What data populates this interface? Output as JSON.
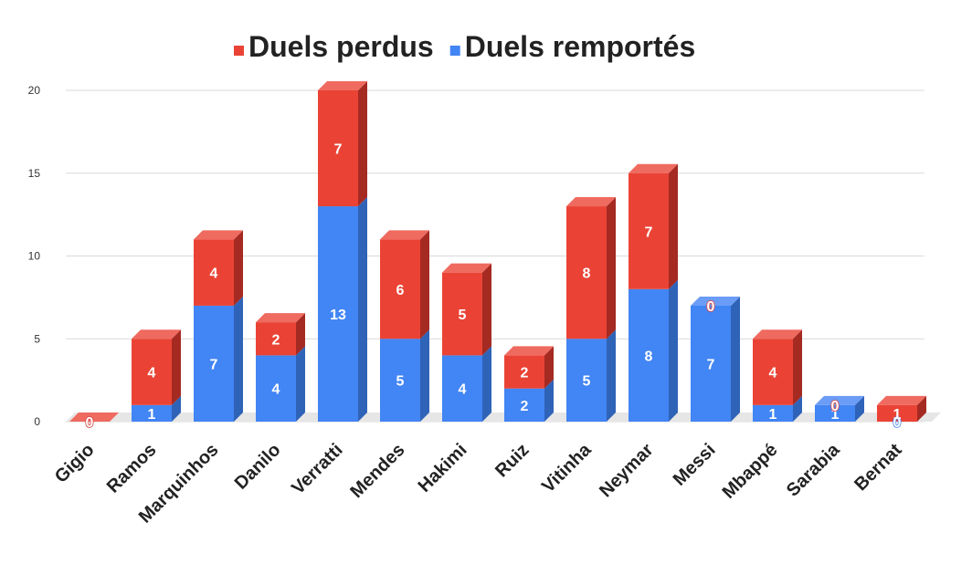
{
  "chart_data": {
    "type": "bar",
    "stacked": true,
    "three_d": true,
    "categories": [
      "Gigio",
      "Ramos",
      "Marquinhos",
      "Danilo",
      "Verratti",
      "Mendes",
      "Hakimi",
      "Ruiz",
      "Vitinha",
      "Neymar",
      "Messi",
      "Mbappé",
      "Sarabia",
      "Bernat"
    ],
    "series": [
      {
        "name": "Duels remportés",
        "color": "#4285f4",
        "side_color": "#2f63b8",
        "top_color": "#6b9cf6",
        "values": [
          0,
          1,
          7,
          4,
          13,
          5,
          4,
          2,
          5,
          8,
          7,
          1,
          1,
          0
        ]
      },
      {
        "name": "Duels perdus",
        "color": "#ea4335",
        "side_color": "#a52a22",
        "top_color": "#ef6a5f",
        "values": [
          0,
          4,
          4,
          2,
          7,
          6,
          5,
          2,
          8,
          7,
          0,
          4,
          0,
          1
        ]
      }
    ],
    "legend_order": [
      "Duels perdus",
      "Duels remportés"
    ],
    "legend_position": "top",
    "yticks": [
      "0",
      "5",
      "10",
      "15",
      "20"
    ],
    "ylim": [
      0,
      20
    ],
    "grid": true
  }
}
